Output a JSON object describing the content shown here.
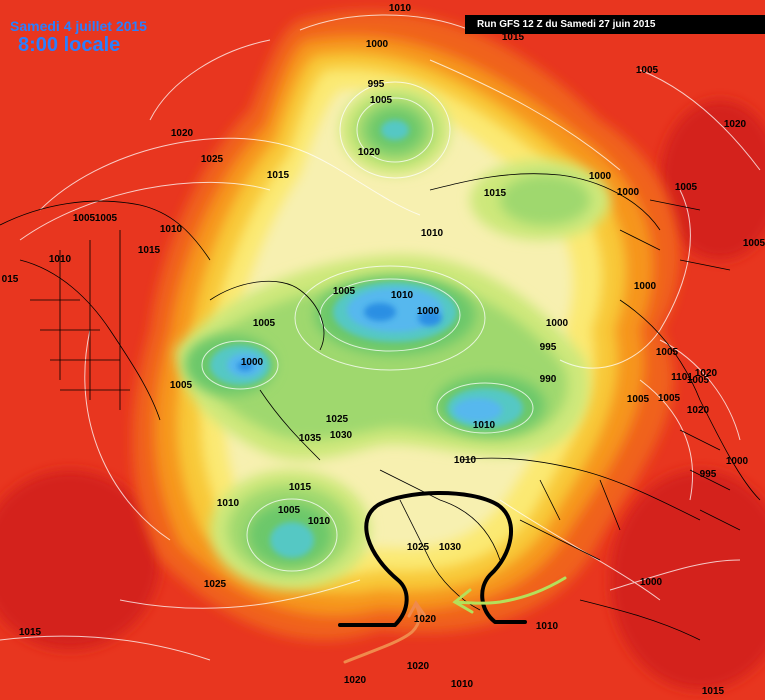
{
  "header": {
    "date": "Samedi 4 juillet 2015",
    "time": "8:00 locale",
    "run": "Run GFS 12 Z du Samedi 27 juin 2015"
  },
  "colors": {
    "red": "#e8361f",
    "deep_red": "#d4231b",
    "orange_red": "#f0621f",
    "orange": "#f6951f",
    "yellow_orange": "#f8c838",
    "yellow": "#fbe972",
    "pale_yellow": "#f7f0b0",
    "yellow_green": "#cde87a",
    "light_green": "#9fd86e",
    "green": "#6cc86b",
    "teal": "#55c8c4",
    "light_blue": "#57b8ee",
    "blue": "#2c8fe3",
    "annotation_black": "#000000",
    "annotation_green": "#b5e05a",
    "annotation_orange": "#f08a4c"
  },
  "pressure_labels": [
    {
      "text": "1010"
    },
    {
      "text": "1015"
    },
    {
      "text": "1000"
    },
    {
      "text": "995"
    },
    {
      "text": "1005"
    },
    {
      "text": "1020"
    },
    {
      "text": "1005"
    },
    {
      "text": "1020"
    },
    {
      "text": "1025"
    },
    {
      "text": "1015"
    },
    {
      "text": "1015"
    },
    {
      "text": "1000"
    },
    {
      "text": "1000"
    },
    {
      "text": "1005"
    },
    {
      "text": "1010"
    },
    {
      "text": "1005"
    },
    {
      "text": "1010"
    },
    {
      "text": "1005"
    },
    {
      "text": "1010"
    },
    {
      "text": "1015"
    },
    {
      "text": "1005"
    },
    {
      "text": "1000"
    },
    {
      "text": "1005"
    },
    {
      "text": "1010"
    },
    {
      "text": "1005"
    },
    {
      "text": "1000"
    },
    {
      "text": "1000"
    },
    {
      "text": "1005"
    },
    {
      "text": "995"
    },
    {
      "text": "1005"
    },
    {
      "text": "990"
    },
    {
      "text": "1005"
    },
    {
      "text": "1005"
    },
    {
      "text": "1000"
    },
    {
      "text": "1005"
    },
    {
      "text": "1025"
    },
    {
      "text": "1030"
    },
    {
      "text": "1035"
    },
    {
      "text": "1010"
    },
    {
      "text": "1020"
    },
    {
      "text": "1015"
    },
    {
      "text": "1010"
    },
    {
      "text": "1005"
    },
    {
      "text": "1010"
    },
    {
      "text": "1025"
    },
    {
      "text": "1030"
    },
    {
      "text": "1000"
    },
    {
      "text": "1010"
    },
    {
      "text": "1025"
    },
    {
      "text": "1015"
    },
    {
      "text": "1010"
    },
    {
      "text": "1020"
    },
    {
      "text": "1020"
    },
    {
      "text": "1020"
    },
    {
      "text": "1010"
    },
    {
      "text": "1015"
    },
    {
      "text": "1020"
    },
    {
      "text": "1101"
    },
    {
      "text": "1020"
    },
    {
      "text": "1000"
    },
    {
      "text": "995"
    },
    {
      "text": "015"
    }
  ]
}
